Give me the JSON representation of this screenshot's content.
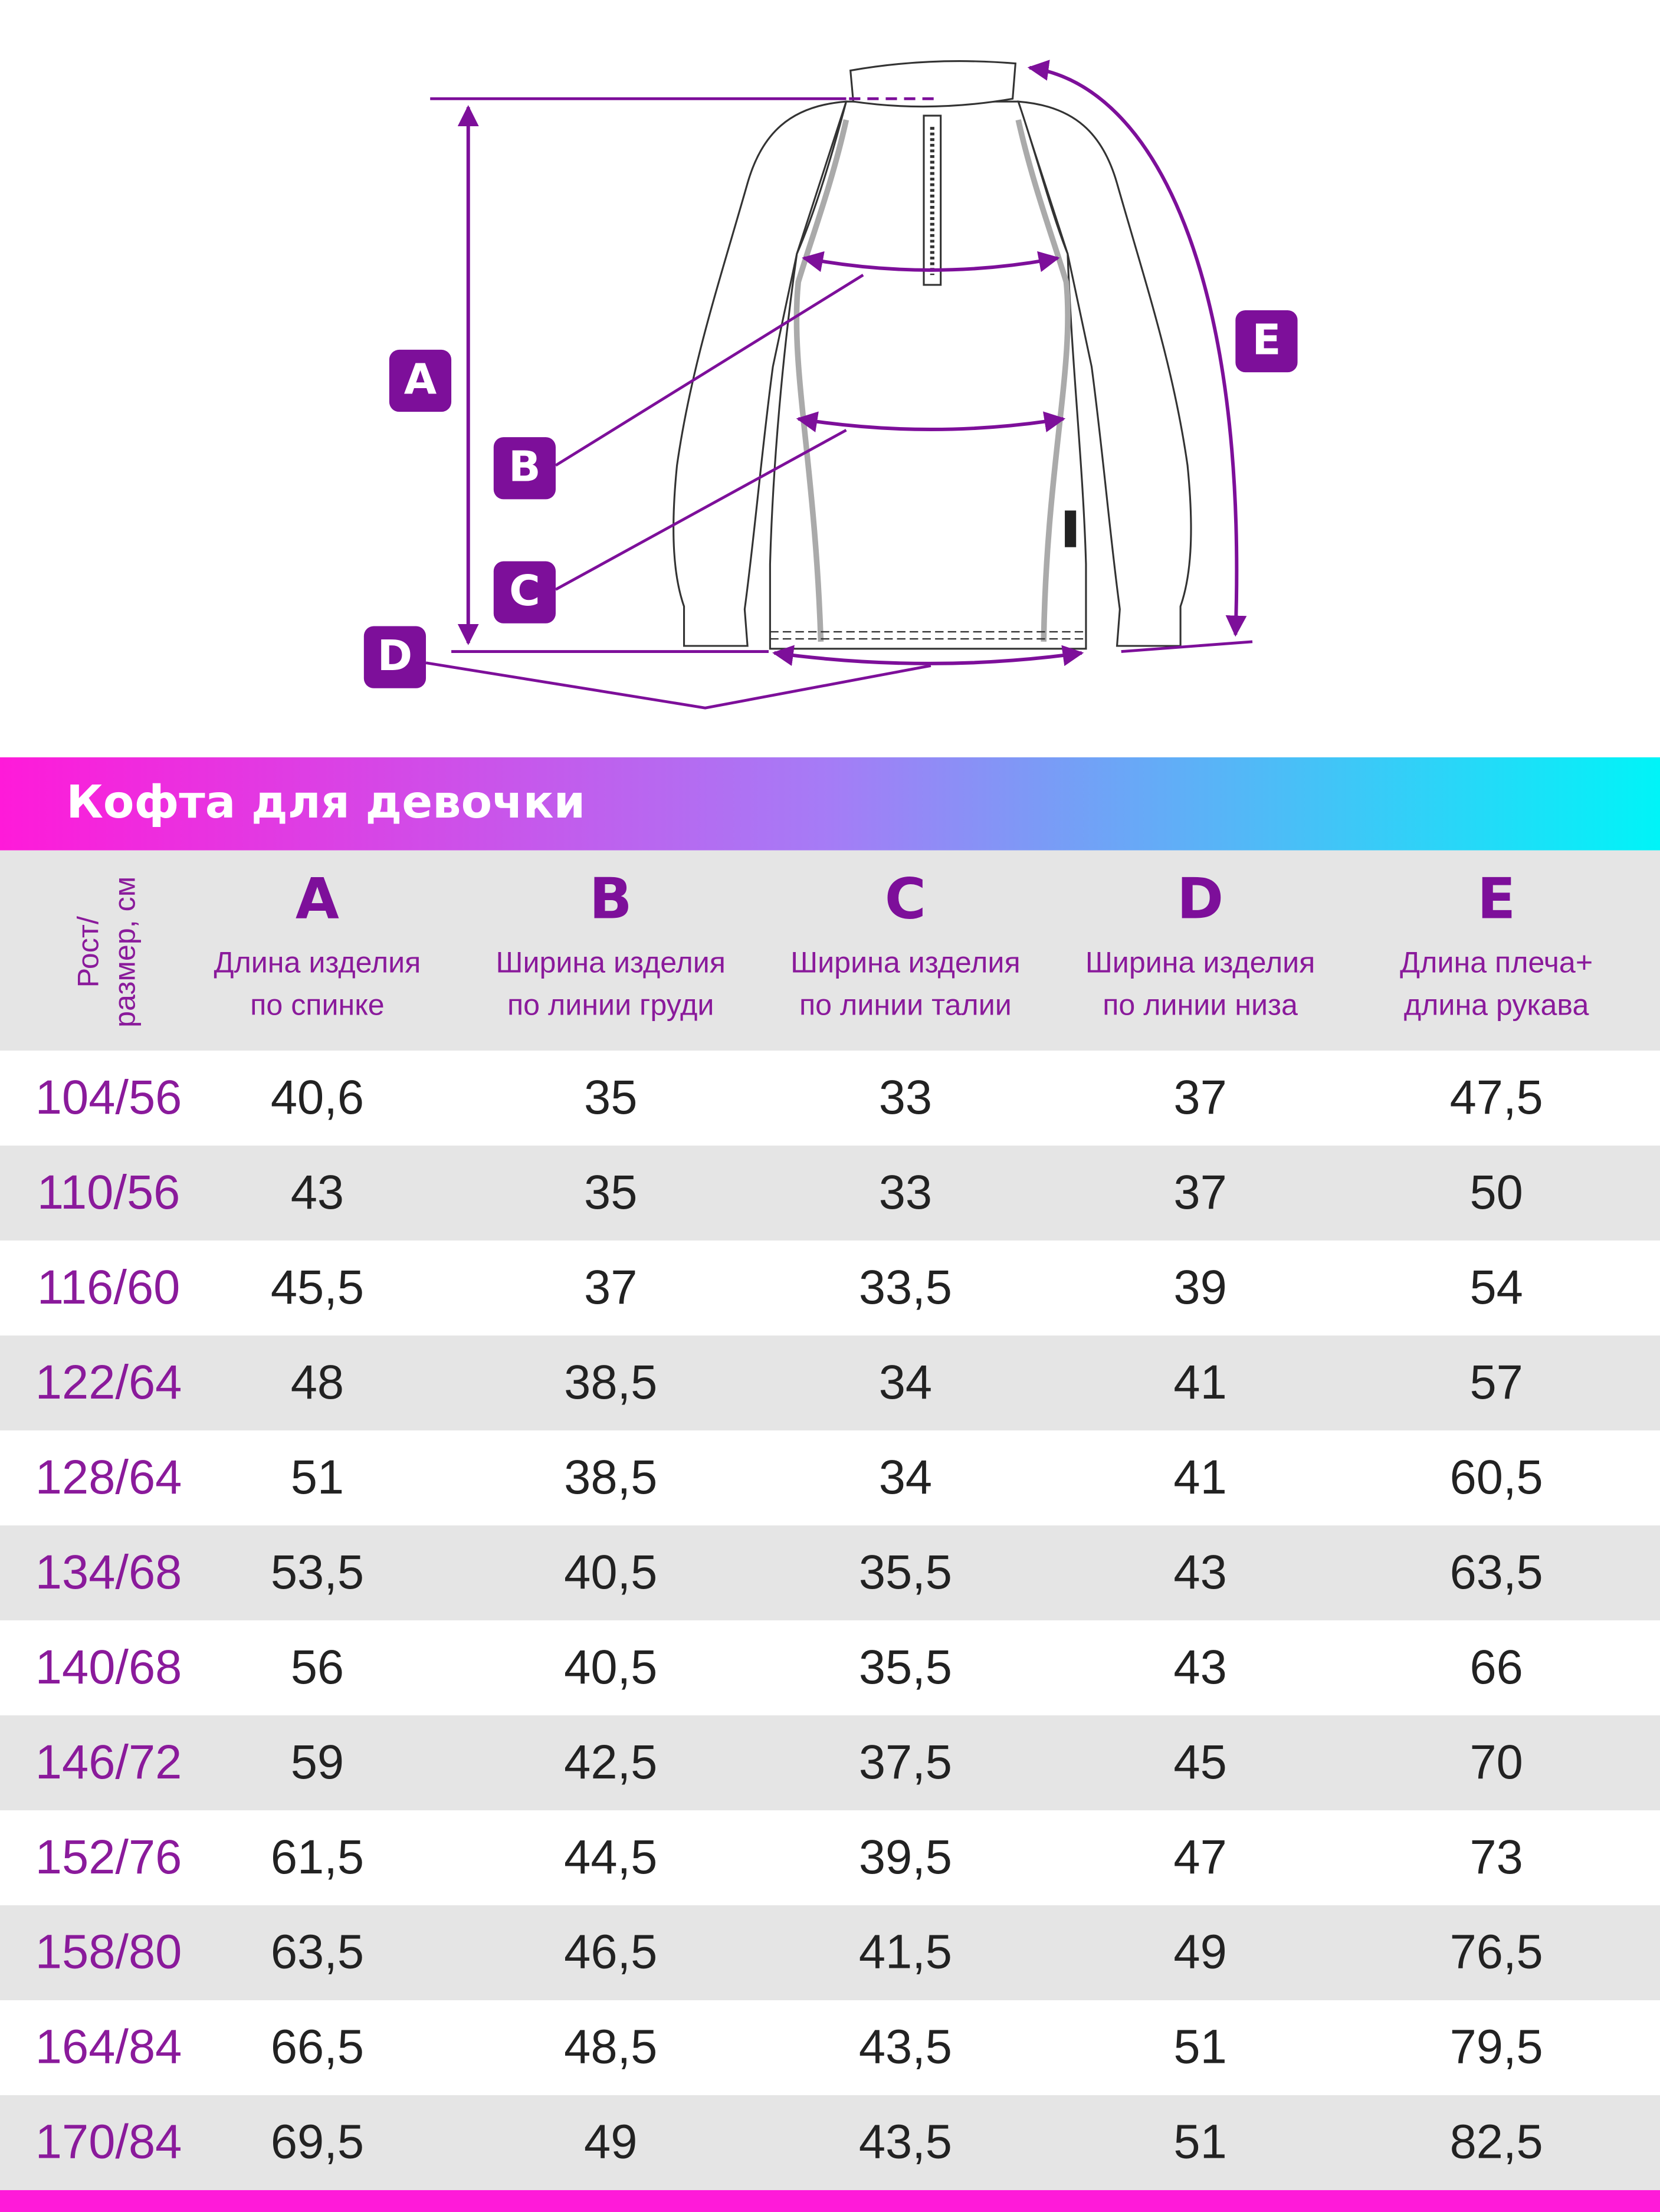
{
  "diagram": {
    "labels": [
      "A",
      "B",
      "C",
      "D",
      "E"
    ]
  },
  "header": {
    "title": "Кофта для девочки"
  },
  "table": {
    "row_header": [
      "Рост/",
      "размер, см"
    ],
    "columns": [
      {
        "letter": "A",
        "desc": [
          "Длина изделия",
          "по спинке"
        ]
      },
      {
        "letter": "B",
        "desc": [
          "Ширина изделия",
          "по линии груди"
        ]
      },
      {
        "letter": "C",
        "desc": [
          "Ширина изделия",
          "по линии талии"
        ]
      },
      {
        "letter": "D",
        "desc": [
          "Ширина изделия",
          "по линии низа"
        ]
      },
      {
        "letter": "E",
        "desc": [
          "Длина плеча+",
          "длина рукава"
        ]
      }
    ],
    "rows": [
      [
        "104/56",
        "40,6",
        "35",
        "33",
        "37",
        "47,5"
      ],
      [
        "110/56",
        "43",
        "35",
        "33",
        "37",
        "50"
      ],
      [
        "116/60",
        "45,5",
        "37",
        "33,5",
        "39",
        "54"
      ],
      [
        "122/64",
        "48",
        "38,5",
        "34",
        "41",
        "57"
      ],
      [
        "128/64",
        "51",
        "38,5",
        "34",
        "41",
        "60,5"
      ],
      [
        "134/68",
        "53,5",
        "40,5",
        "35,5",
        "43",
        "63,5"
      ],
      [
        "140/68",
        "56",
        "40,5",
        "35,5",
        "43",
        "66"
      ],
      [
        "146/72",
        "59",
        "42,5",
        "37,5",
        "45",
        "70"
      ],
      [
        "152/76",
        "61,5",
        "44,5",
        "39,5",
        "47",
        "73"
      ],
      [
        "158/80",
        "63,5",
        "46,5",
        "41,5",
        "49",
        "76,5"
      ],
      [
        "164/84",
        "66,5",
        "48,5",
        "43,5",
        "51",
        "79,5"
      ],
      [
        "170/84",
        "69,5",
        "49",
        "43,5",
        "51",
        "82,5"
      ]
    ]
  }
}
